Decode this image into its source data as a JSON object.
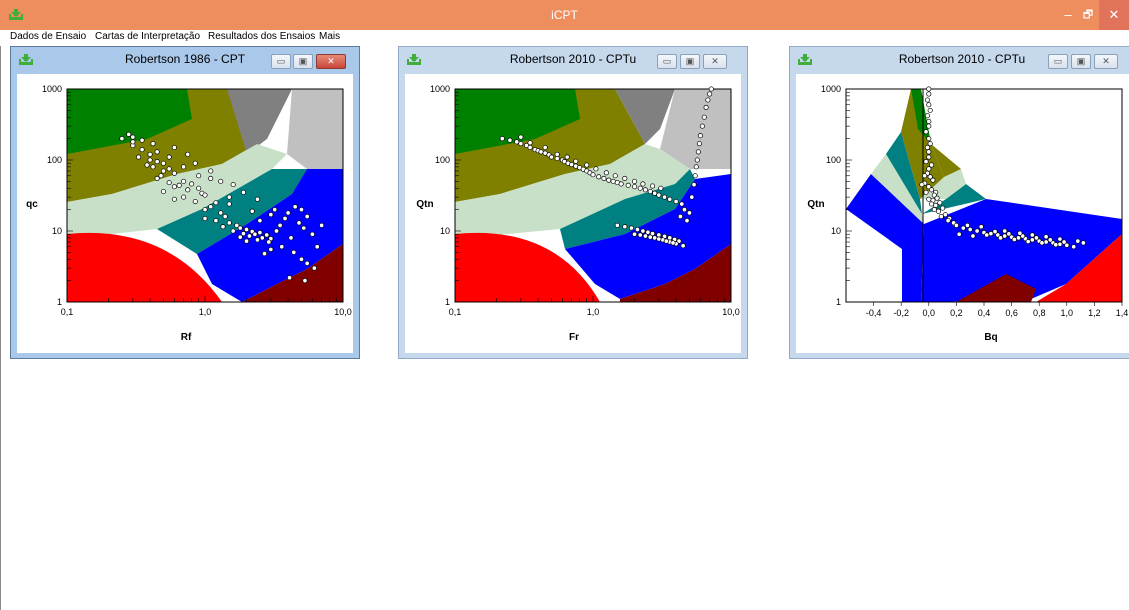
{
  "app": {
    "title": "iCPT",
    "controls": {
      "minimize": "–",
      "restore": "🗗",
      "close": "✕"
    },
    "accent": "#ee8e5f"
  },
  "menu": [
    "Dados de Ensaio",
    "Cartas de Interpretação",
    "Resultados dos Ensaios",
    "Mais"
  ],
  "windows": [
    {
      "title": "Robertson 1986 - CPT",
      "xlabel": "Rf",
      "ylabel": "qc",
      "xticks": [
        "0,1",
        "1,0",
        "10,0"
      ],
      "yticks": [
        "1",
        "10",
        "100",
        "1000"
      ]
    },
    {
      "title": "Robertson 2010 - CPTu",
      "xlabel": "Fr",
      "ylabel": "Qtn",
      "xticks": [
        "0,1",
        "1,0",
        "10,0"
      ],
      "yticks": [
        "1",
        "10",
        "100",
        "1000"
      ]
    },
    {
      "title": "Robertson 2010 - CPTu",
      "xlabel": "Bq",
      "ylabel": "Qtn",
      "xticks": [
        "-0,4",
        "-0,2",
        "0,0",
        "0,2",
        "0,4",
        "0,6",
        "0,8",
        "1,0",
        "1,2",
        "1,4"
      ],
      "yticks": [
        "1",
        "10",
        "100",
        "1000"
      ]
    }
  ],
  "chart_data": [
    {
      "type": "scatter",
      "xlabel": "Rf",
      "ylabel": "qc",
      "xscale": "log",
      "yscale": "log",
      "xlim": [
        0.1,
        10
      ],
      "ylim": [
        1,
        1000
      ],
      "zone_colors": [
        "#ff0000",
        "#800000",
        "#0000ff",
        "#008080",
        "#c8e0c8",
        "#808000",
        "#008000",
        "#808080",
        "#c0c0c0"
      ],
      "points": [
        [
          0.25,
          200
        ],
        [
          0.3,
          210
        ],
        [
          0.35,
          190
        ],
        [
          0.3,
          160
        ],
        [
          0.35,
          140
        ],
        [
          0.4,
          120
        ],
        [
          0.33,
          110
        ],
        [
          0.4,
          100
        ],
        [
          0.45,
          95
        ],
        [
          0.5,
          90
        ],
        [
          0.38,
          85
        ],
        [
          0.42,
          80
        ],
        [
          0.55,
          75
        ],
        [
          0.5,
          70
        ],
        [
          0.6,
          65
        ],
        [
          0.48,
          60
        ],
        [
          0.45,
          55
        ],
        [
          0.7,
          50
        ],
        [
          0.55,
          48
        ],
        [
          0.8,
          46
        ],
        [
          0.65,
          44
        ],
        [
          0.6,
          42
        ],
        [
          0.9,
          40
        ],
        [
          1.1,
          55
        ],
        [
          1.3,
          50
        ],
        [
          0.75,
          38
        ],
        [
          0.5,
          36
        ],
        [
          0.95,
          34
        ],
        [
          1.0,
          32
        ],
        [
          0.7,
          30
        ],
        [
          0.6,
          28
        ],
        [
          0.85,
          26
        ],
        [
          1.2,
          25
        ],
        [
          1.5,
          30
        ],
        [
          1.1,
          22
        ],
        [
          1.0,
          20
        ],
        [
          1.3,
          18
        ],
        [
          1.4,
          16
        ],
        [
          1.0,
          15
        ],
        [
          1.2,
          14
        ],
        [
          1.5,
          13
        ],
        [
          1.7,
          12
        ],
        [
          1.35,
          11.5
        ],
        [
          1.8,
          11
        ],
        [
          2.0,
          10.5
        ],
        [
          1.6,
          10
        ],
        [
          2.2,
          9.8
        ],
        [
          2.5,
          9.5
        ],
        [
          1.9,
          9.2
        ],
        [
          2.3,
          9
        ],
        [
          2.8,
          8.8
        ],
        [
          2.1,
          8.5
        ],
        [
          1.8,
          8.2
        ],
        [
          2.6,
          8
        ],
        [
          3.0,
          7.8
        ],
        [
          2.4,
          7.5
        ],
        [
          2.0,
          7.2
        ],
        [
          2.9,
          7
        ],
        [
          3.3,
          10
        ],
        [
          3.5,
          12
        ],
        [
          3.8,
          15
        ],
        [
          4.0,
          18
        ],
        [
          3.2,
          20
        ],
        [
          4.5,
          22
        ],
        [
          5.0,
          20
        ],
        [
          5.5,
          16
        ],
        [
          4.8,
          13
        ],
        [
          5.2,
          11
        ],
        [
          6.0,
          9
        ],
        [
          4.2,
          8
        ],
        [
          3.6,
          6
        ],
        [
          3.0,
          5.5
        ],
        [
          2.7,
          4.8
        ],
        [
          4.4,
          5
        ],
        [
          5.0,
          4
        ],
        [
          5.5,
          3.5
        ],
        [
          6.2,
          3
        ],
        [
          4.1,
          2.2
        ],
        [
          5.3,
          2
        ],
        [
          6.5,
          6
        ],
        [
          7.0,
          12
        ],
        [
          2.5,
          14
        ],
        [
          3.0,
          17
        ],
        [
          2.2,
          19
        ],
        [
          1.5,
          24
        ],
        [
          0.9,
          60
        ],
        [
          0.7,
          80
        ],
        [
          0.55,
          110
        ],
        [
          0.45,
          130
        ],
        [
          0.3,
          180
        ],
        [
          0.28,
          230
        ],
        [
          0.42,
          170
        ],
        [
          0.6,
          150
        ],
        [
          0.75,
          120
        ],
        [
          0.85,
          90
        ],
        [
          1.1,
          70
        ],
        [
          1.6,
          45
        ],
        [
          1.9,
          35
        ],
        [
          2.4,
          28
        ]
      ]
    },
    {
      "type": "scatter",
      "xlabel": "Fr",
      "ylabel": "Qtn",
      "xscale": "log",
      "yscale": "log",
      "xlim": [
        0.1,
        10
      ],
      "ylim": [
        1,
        1000
      ],
      "zone_colors": [
        "#ff0000",
        "#800000",
        "#0000ff",
        "#008080",
        "#c8e0c8",
        "#808000",
        "#008000",
        "#808080",
        "#c0c0c0"
      ],
      "points": [
        [
          0.22,
          200
        ],
        [
          0.25,
          190
        ],
        [
          0.28,
          180
        ],
        [
          0.3,
          170
        ],
        [
          0.33,
          160
        ],
        [
          0.35,
          150
        ],
        [
          0.38,
          140
        ],
        [
          0.4,
          135
        ],
        [
          0.42,
          130
        ],
        [
          0.45,
          125
        ],
        [
          0.48,
          118
        ],
        [
          0.5,
          110
        ],
        [
          0.55,
          105
        ],
        [
          0.6,
          100
        ],
        [
          0.62,
          95
        ],
        [
          0.66,
          90
        ],
        [
          0.7,
          86
        ],
        [
          0.75,
          82
        ],
        [
          0.8,
          78
        ],
        [
          0.85,
          74
        ],
        [
          0.9,
          70
        ],
        [
          0.95,
          66
        ],
        [
          1.0,
          62
        ],
        [
          1.1,
          58
        ],
        [
          1.2,
          55
        ],
        [
          1.3,
          52
        ],
        [
          1.4,
          50
        ],
        [
          1.5,
          48
        ],
        [
          1.6,
          46
        ],
        [
          1.8,
          44
        ],
        [
          2.0,
          42
        ],
        [
          2.2,
          40
        ],
        [
          2.4,
          38
        ],
        [
          2.6,
          36
        ],
        [
          2.8,
          34
        ],
        [
          3.0,
          32
        ],
        [
          3.3,
          30
        ],
        [
          3.6,
          28
        ],
        [
          4.0,
          26
        ],
        [
          4.4,
          24
        ],
        [
          1.5,
          12
        ],
        [
          1.7,
          11.5
        ],
        [
          1.9,
          11
        ],
        [
          2.1,
          10.5
        ],
        [
          2.3,
          10
        ],
        [
          2.5,
          9.6
        ],
        [
          2.7,
          9.2
        ],
        [
          3.0,
          8.8
        ],
        [
          3.3,
          8.4
        ],
        [
          3.6,
          8
        ],
        [
          3.9,
          7.6
        ],
        [
          4.2,
          7.2
        ],
        [
          2.0,
          9
        ],
        [
          2.4,
          8.5
        ],
        [
          2.8,
          8
        ],
        [
          3.2,
          7.5
        ],
        [
          3.6,
          7
        ],
        [
          4.0,
          6.6
        ],
        [
          2.2,
          8.8
        ],
        [
          2.6,
          8.2
        ],
        [
          3.0,
          7.7
        ],
        [
          3.4,
          7.2
        ],
        [
          3.8,
          6.8
        ],
        [
          4.5,
          6.2
        ],
        [
          5.0,
          18
        ],
        [
          5.2,
          30
        ],
        [
          5.4,
          45
        ],
        [
          5.5,
          60
        ],
        [
          5.6,
          80
        ],
        [
          5.7,
          100
        ],
        [
          5.8,
          130
        ],
        [
          5.9,
          170
        ],
        [
          6.0,
          220
        ],
        [
          6.2,
          300
        ],
        [
          6.4,
          400
        ],
        [
          6.6,
          550
        ],
        [
          6.8,
          700
        ],
        [
          7.0,
          850
        ],
        [
          7.2,
          1000
        ],
        [
          4.8,
          14
        ],
        [
          4.6,
          20
        ],
        [
          4.3,
          16
        ],
        [
          0.3,
          210
        ],
        [
          0.35,
          175
        ],
        [
          0.45,
          150
        ],
        [
          0.55,
          120
        ],
        [
          0.65,
          110
        ],
        [
          0.75,
          96
        ],
        [
          0.9,
          85
        ],
        [
          1.05,
          75
        ],
        [
          1.25,
          66
        ],
        [
          1.45,
          60
        ],
        [
          1.7,
          55
        ],
        [
          2.0,
          50
        ],
        [
          2.3,
          46
        ],
        [
          2.7,
          43
        ],
        [
          3.1,
          40
        ]
      ]
    },
    {
      "type": "scatter",
      "xlabel": "Bq",
      "ylabel": "Qtn",
      "xscale": "linear",
      "yscale": "log",
      "xlim": [
        -0.6,
        1.4
      ],
      "ylim": [
        1,
        1000
      ],
      "zone_colors": [
        "#ff0000",
        "#800000",
        "#0000ff",
        "#008080",
        "#c8e0c8",
        "#808000",
        "#008000",
        "#808080",
        "#c0c0c0"
      ],
      "points": [
        [
          0.0,
          1000
        ],
        [
          0.0,
          850
        ],
        [
          -0.01,
          700
        ],
        [
          0.0,
          600
        ],
        [
          0.01,
          500
        ],
        [
          -0.01,
          420
        ],
        [
          0.0,
          350
        ],
        [
          0.0,
          300
        ],
        [
          -0.02,
          250
        ],
        [
          0.0,
          200
        ],
        [
          0.01,
          170
        ],
        [
          -0.01,
          150
        ],
        [
          0.0,
          130
        ],
        [
          0.0,
          110
        ],
        [
          -0.02,
          95
        ],
        [
          0.02,
          85
        ],
        [
          0.0,
          75
        ],
        [
          -0.01,
          65
        ],
        [
          0.01,
          58
        ],
        [
          0.03,
          52
        ],
        [
          -0.03,
          47
        ],
        [
          0.0,
          42
        ],
        [
          0.02,
          38
        ],
        [
          0.05,
          35
        ],
        [
          0.04,
          32
        ],
        [
          0.06,
          29
        ],
        [
          0.03,
          27
        ],
        [
          0.08,
          25
        ],
        [
          0.05,
          23
        ],
        [
          0.1,
          21
        ],
        [
          0.07,
          19
        ],
        [
          0.12,
          17
        ],
        [
          0.15,
          15
        ],
        [
          0.18,
          13
        ],
        [
          0.2,
          12
        ],
        [
          0.25,
          11
        ],
        [
          0.3,
          10.5
        ],
        [
          0.35,
          10
        ],
        [
          0.4,
          9.5
        ],
        [
          0.45,
          9.2
        ],
        [
          0.5,
          8.8
        ],
        [
          0.55,
          8.5
        ],
        [
          0.6,
          8.2
        ],
        [
          0.65,
          8
        ],
        [
          0.7,
          7.8
        ],
        [
          0.75,
          7.5
        ],
        [
          0.8,
          7.2
        ],
        [
          0.85,
          7
        ],
        [
          0.9,
          6.8
        ],
        [
          0.95,
          6.5
        ],
        [
          1.0,
          6.3
        ],
        [
          1.05,
          6
        ],
        [
          0.42,
          8.8
        ],
        [
          0.52,
          8
        ],
        [
          0.62,
          7.6
        ],
        [
          0.72,
          7.1
        ],
        [
          0.82,
          6.8
        ],
        [
          0.92,
          6.4
        ],
        [
          0.22,
          9
        ],
        [
          0.32,
          8.5
        ],
        [
          0.48,
          9.8
        ],
        [
          0.58,
          9.1
        ],
        [
          0.68,
          8.5
        ],
        [
          0.78,
          8
        ],
        [
          0.88,
          7.5
        ],
        [
          0.98,
          7
        ],
        [
          -0.03,
          60
        ],
        [
          -0.05,
          45
        ],
        [
          -0.02,
          35
        ],
        [
          0.0,
          28
        ],
        [
          0.02,
          24
        ],
        [
          0.04,
          20
        ],
        [
          0.09,
          16
        ],
        [
          0.14,
          14
        ],
        [
          0.28,
          12
        ],
        [
          0.38,
          11.5
        ],
        [
          0.55,
          10
        ],
        [
          0.66,
          9.3
        ],
        [
          0.75,
          8.8
        ],
        [
          0.85,
          8.3
        ],
        [
          0.95,
          7.7
        ],
        [
          1.08,
          7.2
        ],
        [
          1.12,
          6.8
        ]
      ]
    }
  ]
}
